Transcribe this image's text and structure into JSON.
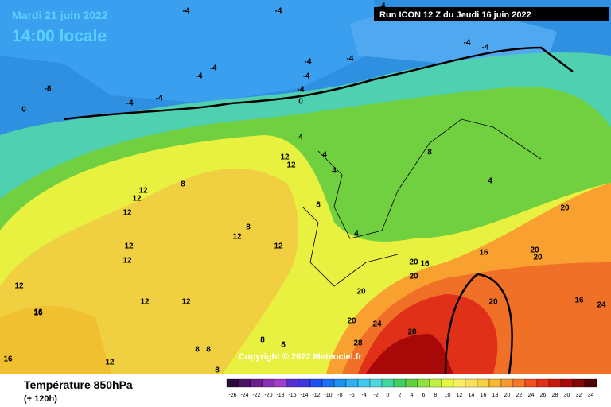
{
  "header": {
    "date": "Mardi 21 juin 2022",
    "time": "14:00 locale",
    "run": "Run ICON 12 Z du Jeudi 16 juin 2022"
  },
  "footer": {
    "title": "Température 850hPa",
    "lead": "(+ 120h)",
    "copyright": "Copyright © 2022 Meteociel.fr"
  },
  "colorbar": {
    "ticks": [
      -26,
      -24,
      -22,
      -20,
      -18,
      -16,
      -14,
      -12,
      -10,
      -8,
      -6,
      -4,
      -2,
      0,
      2,
      4,
      6,
      8,
      10,
      12,
      14,
      16,
      18,
      20,
      22,
      24,
      26,
      28,
      30,
      32,
      34
    ],
    "colors": [
      "#2b0a3d",
      "#4a1466",
      "#6a1f8c",
      "#8a2fb0",
      "#a040c8",
      "#5a2fd0",
      "#3a3ae0",
      "#2050f0",
      "#1a70f0",
      "#1e90f0",
      "#30b0f0",
      "#40c8f0",
      "#50d8e0",
      "#40d8a0",
      "#40d060",
      "#60d040",
      "#90e040",
      "#c0f040",
      "#e8f840",
      "#f8f060",
      "#f8e060",
      "#f8d040",
      "#f8b830",
      "#f89830",
      "#f87828",
      "#f05020",
      "#e03018",
      "#c81810",
      "#a80808",
      "#800808",
      "#500404"
    ]
  },
  "isotherms": [
    -4,
    -4,
    -4,
    -4,
    -4,
    -4,
    -4,
    -4,
    -4,
    -4,
    -8,
    0,
    -4,
    -4,
    -4,
    0,
    4,
    4,
    4,
    4,
    8,
    12,
    12,
    12,
    12,
    12,
    8,
    8,
    12,
    12,
    12,
    12,
    12,
    16,
    12,
    8,
    8,
    8,
    8,
    8,
    4,
    8,
    12,
    16,
    16,
    12,
    20,
    20,
    20,
    16,
    20,
    20,
    24,
    28,
    28,
    20,
    20,
    16,
    24,
    16,
    20
  ]
}
